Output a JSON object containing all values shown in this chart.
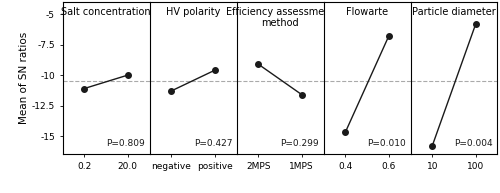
{
  "panels": [
    {
      "title": "Salt concentration",
      "x_labels": [
        "0.2",
        "20.0"
      ],
      "y_values": [
        -11.1,
        -10.0
      ],
      "p_value": "P=0.809"
    },
    {
      "title": "HV polarity",
      "x_labels": [
        "negative",
        "positive"
      ],
      "y_values": [
        -11.3,
        -9.6
      ],
      "p_value": "P=0.427"
    },
    {
      "title": "Efficiency assessment\nmethod",
      "x_labels": [
        "2MPS",
        "1MPS"
      ],
      "y_values": [
        -9.1,
        -11.6
      ],
      "p_value": "P=0.299"
    },
    {
      "title": "Flowarte",
      "x_labels": [
        "0.4",
        "0.6"
      ],
      "y_values": [
        -14.7,
        -6.8
      ],
      "p_value": "P=0.010"
    },
    {
      "title": "Particle diameter",
      "x_labels": [
        "10",
        "100"
      ],
      "y_values": [
        -15.8,
        -5.8
      ],
      "p_value": "P=0.004"
    }
  ],
  "ylim": [
    -16.5,
    -4.0
  ],
  "yticks": [
    -5.0,
    -7.5,
    -10.0,
    -12.5,
    -15.0
  ],
  "mean_line": -10.45,
  "ylabel": "Mean of SN ratios",
  "line_color": "#1a1a1a",
  "marker_color": "#1a1a1a",
  "dashed_color": "#aaaaaa",
  "background_color": "#ffffff",
  "fontsize_title": 7.0,
  "fontsize_label": 6.5,
  "fontsize_pvalue": 6.5,
  "fontsize_ylabel": 7.5,
  "marker_size": 4
}
